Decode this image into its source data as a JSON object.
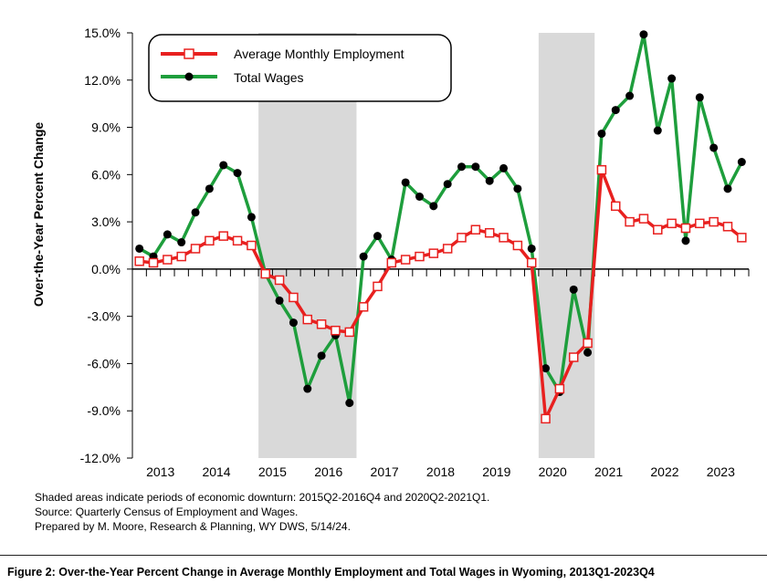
{
  "chart_data": {
    "type": "line",
    "ylabel": "Over-the-Year Percent Change",
    "ylim": [
      -12,
      15
    ],
    "yticks": [
      "15.0%",
      "12.0%",
      "9.0%",
      "6.0%",
      "3.0%",
      "0.0%",
      "-3.0%",
      "-6.0%",
      "-9.0%",
      "-12.0%"
    ],
    "ytick_values": [
      15,
      12,
      9,
      6,
      3,
      0,
      -3,
      -6,
      -9,
      -12
    ],
    "year_labels": [
      "2013",
      "2014",
      "2015",
      "2016",
      "2017",
      "2018",
      "2019",
      "2020",
      "2021",
      "2022",
      "2023"
    ],
    "x": [
      "2013Q1",
      "2013Q2",
      "2013Q3",
      "2013Q4",
      "2014Q1",
      "2014Q2",
      "2014Q3",
      "2014Q4",
      "2015Q1",
      "2015Q2",
      "2015Q3",
      "2015Q4",
      "2016Q1",
      "2016Q2",
      "2016Q3",
      "2016Q4",
      "2017Q1",
      "2017Q2",
      "2017Q3",
      "2017Q4",
      "2018Q1",
      "2018Q2",
      "2018Q3",
      "2018Q4",
      "2019Q1",
      "2019Q2",
      "2019Q3",
      "2019Q4",
      "2020Q1",
      "2020Q2",
      "2020Q3",
      "2020Q4",
      "2021Q1",
      "2021Q2",
      "2021Q3",
      "2021Q4",
      "2022Q1",
      "2022Q2",
      "2022Q3",
      "2022Q4",
      "2023Q1",
      "2023Q2",
      "2023Q3",
      "2023Q4"
    ],
    "shaded_periods": [
      [
        "2015Q2",
        "2016Q4"
      ],
      [
        "2020Q2",
        "2021Q1"
      ]
    ],
    "legend_position": "top-left",
    "grid": false,
    "series": [
      {
        "name": "Average Monthly Employment",
        "color": "#e8201f",
        "marker": "open-square",
        "values": [
          0.5,
          0.4,
          0.6,
          0.8,
          1.3,
          1.8,
          2.1,
          1.8,
          1.5,
          -0.3,
          -0.7,
          -1.8,
          -3.2,
          -3.5,
          -3.9,
          -4.0,
          -2.4,
          -1.1,
          0.4,
          0.6,
          0.8,
          1.0,
          1.3,
          2.0,
          2.5,
          2.3,
          2.0,
          1.5,
          0.4,
          -9.5,
          -7.6,
          -5.6,
          -4.7,
          6.3,
          4.0,
          3.0,
          3.2,
          2.5,
          2.9,
          2.6,
          2.9,
          3.0,
          2.7,
          2.0
        ]
      },
      {
        "name": "Total Wages",
        "color": "#1e9e3c",
        "marker": "filled-circle",
        "values": [
          1.3,
          0.8,
          2.2,
          1.7,
          3.6,
          5.1,
          6.6,
          6.1,
          3.3,
          -0.3,
          -2.0,
          -3.4,
          -7.6,
          -5.5,
          -4.2,
          -8.5,
          0.8,
          2.1,
          0.6,
          5.5,
          4.6,
          4.0,
          5.4,
          6.5,
          6.5,
          5.6,
          6.4,
          5.1,
          1.3,
          -6.3,
          -7.8,
          -1.3,
          -5.3,
          8.6,
          10.1,
          11.0,
          14.9,
          8.8,
          12.1,
          1.8,
          10.9,
          7.7,
          5.1,
          6.8
        ]
      }
    ]
  },
  "notes": {
    "line1": "Shaded areas indicate periods of economic downturn: 2015Q2-2016Q4 and 2020Q2-2021Q1.",
    "line2": "Source: Quarterly Census of Employment and Wages.",
    "line3": "Prepared by M. Moore, Research & Planning, WY DWS, 5/14/24."
  },
  "caption": "Figure 2: Over-the-Year Percent Change in Average Monthly Employment and Total Wages in Wyoming, 2013Q1-2023Q4"
}
